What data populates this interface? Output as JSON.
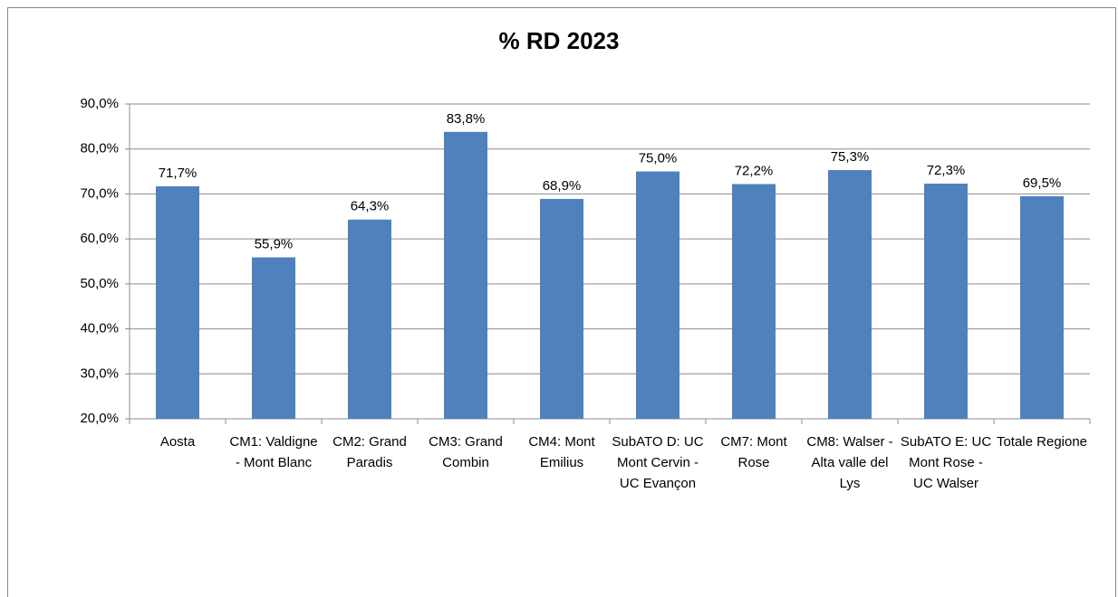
{
  "chart_data": {
    "type": "bar",
    "title": "% RD 2023",
    "categories": [
      "Aosta",
      "CM1: Valdigne - Mont Blanc",
      "CM2: Grand Paradis",
      "CM3: Grand Combin",
      "CM4: Mont Emilius",
      "SubATO D: UC Mont Cervin - UC Evançon",
      "CM7: Mont Rose",
      "CM8: Walser - Alta valle del Lys",
      "SubATO E: UC Mont Rose - UC Walser",
      "Totale Regione"
    ],
    "values": [
      71.7,
      55.9,
      64.3,
      83.8,
      68.9,
      75.0,
      72.2,
      75.3,
      72.3,
      69.5
    ],
    "value_labels": [
      "71,7%",
      "55,9%",
      "64,3%",
      "83,8%",
      "68,9%",
      "75,0%",
      "72,2%",
      "75,3%",
      "72,3%",
      "69,5%"
    ],
    "color": "#4f81bd",
    "ylim": [
      20,
      90
    ],
    "yticks": [
      {
        "value": 20,
        "label": "20,0%"
      },
      {
        "value": 30,
        "label": "30,0%"
      },
      {
        "value": 40,
        "label": "40,0%"
      },
      {
        "value": 50,
        "label": "50,0%"
      },
      {
        "value": 60,
        "label": "60,0%"
      },
      {
        "value": 70,
        "label": "70,0%"
      },
      {
        "value": 80,
        "label": "80,0%"
      },
      {
        "value": 90,
        "label": "90,0%"
      }
    ],
    "grid": true
  }
}
